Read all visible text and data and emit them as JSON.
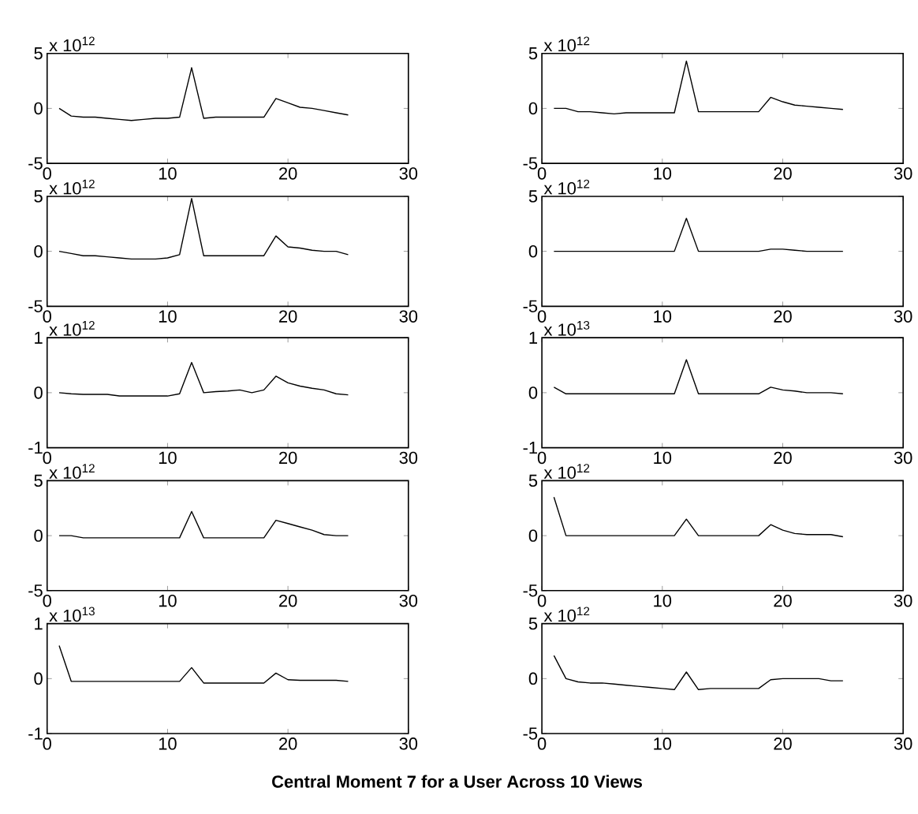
{
  "chart_data": [
    {
      "type": "line",
      "color": "#000000",
      "x": [
        1,
        2,
        3,
        4,
        5,
        6,
        7,
        8,
        9,
        10,
        11,
        12,
        13,
        14,
        15,
        16,
        17,
        18,
        19,
        20,
        21,
        22,
        23,
        24,
        25
      ],
      "values": [
        0,
        -0.7,
        -0.8,
        -0.8,
        -0.9,
        -1.0,
        -1.1,
        -1.0,
        -0.9,
        -0.9,
        -0.8,
        3.7,
        -0.9,
        -0.8,
        -0.8,
        -0.8,
        -0.8,
        -0.8,
        0.9,
        0.5,
        0.1,
        0,
        -0.2,
        -0.4,
        -0.6
      ],
      "xlim": [
        0,
        30
      ],
      "ylim": [
        -5,
        5
      ],
      "xticks": [
        0,
        10,
        20,
        30
      ],
      "yticks": [
        -5,
        0,
        5
      ],
      "annotations": [
        "x 10$^{12}$"
      ]
    },
    {
      "type": "line",
      "color": "#000000",
      "x": [
        1,
        2,
        3,
        4,
        5,
        6,
        7,
        8,
        9,
        10,
        11,
        12,
        13,
        14,
        15,
        16,
        17,
        18,
        19,
        20,
        21,
        22,
        23,
        24,
        25
      ],
      "values": [
        0,
        0,
        -0.3,
        -0.3,
        -0.4,
        -0.5,
        -0.4,
        -0.4,
        -0.4,
        -0.4,
        -0.4,
        4.3,
        -0.3,
        -0.3,
        -0.3,
        -0.3,
        -0.3,
        -0.3,
        1.0,
        0.6,
        0.3,
        0.2,
        0.1,
        0,
        -0.1
      ],
      "xlim": [
        0,
        30
      ],
      "ylim": [
        -5,
        5
      ],
      "xticks": [
        0,
        10,
        20,
        30
      ],
      "yticks": [
        -5,
        0,
        5
      ],
      "annotations": [
        "x 10$^{12}$"
      ]
    },
    {
      "type": "line",
      "color": "#000000",
      "x": [
        1,
        2,
        3,
        4,
        5,
        6,
        7,
        8,
        9,
        10,
        11,
        12,
        13,
        14,
        15,
        16,
        17,
        18,
        19,
        20,
        21,
        22,
        23,
        24,
        25
      ],
      "values": [
        0,
        -0.2,
        -0.4,
        -0.4,
        -0.5,
        -0.6,
        -0.7,
        -0.7,
        -0.7,
        -0.6,
        -0.3,
        4.8,
        -0.4,
        -0.4,
        -0.4,
        -0.4,
        -0.4,
        -0.4,
        1.4,
        0.4,
        0.3,
        0.1,
        0,
        0,
        -0.3
      ],
      "xlim": [
        0,
        30
      ],
      "ylim": [
        -5,
        5
      ],
      "xticks": [
        0,
        10,
        20,
        30
      ],
      "yticks": [
        -5,
        0,
        5
      ],
      "annotations": [
        "x 10$^{12}$"
      ]
    },
    {
      "type": "line",
      "color": "#000000",
      "x": [
        1,
        2,
        3,
        4,
        5,
        6,
        7,
        8,
        9,
        10,
        11,
        12,
        13,
        14,
        15,
        16,
        17,
        18,
        19,
        20,
        21,
        22,
        23,
        24,
        25
      ],
      "values": [
        0,
        0,
        0,
        0,
        0,
        0,
        0,
        0,
        0,
        0,
        0,
        3.0,
        0,
        0,
        0,
        0,
        0,
        0,
        0.2,
        0.2,
        0.1,
        0,
        0,
        0,
        0
      ],
      "xlim": [
        0,
        30
      ],
      "ylim": [
        -5,
        5
      ],
      "xticks": [
        0,
        10,
        20,
        30
      ],
      "yticks": [
        -5,
        0,
        5
      ],
      "annotations": [
        "x 10$^{12}$"
      ]
    },
    {
      "type": "line",
      "color": "#000000",
      "x": [
        1,
        2,
        3,
        4,
        5,
        6,
        7,
        8,
        9,
        10,
        11,
        12,
        13,
        14,
        15,
        16,
        17,
        18,
        19,
        20,
        21,
        22,
        23,
        24,
        25
      ],
      "values": [
        0,
        -0.02,
        -0.03,
        -0.03,
        -0.03,
        -0.06,
        -0.06,
        -0.06,
        -0.06,
        -0.06,
        -0.02,
        0.55,
        0.0,
        0.02,
        0.03,
        0.05,
        0.0,
        0.05,
        0.3,
        0.18,
        0.12,
        0.08,
        0.05,
        -0.02,
        -0.04
      ],
      "xlim": [
        0,
        30
      ],
      "ylim": [
        -1,
        1
      ],
      "xticks": [
        0,
        10,
        20,
        30
      ],
      "yticks": [
        -1,
        0,
        1
      ],
      "annotations": [
        "x 10$^{12}$"
      ]
    },
    {
      "type": "line",
      "color": "#000000",
      "x": [
        1,
        2,
        3,
        4,
        5,
        6,
        7,
        8,
        9,
        10,
        11,
        12,
        13,
        14,
        15,
        16,
        17,
        18,
        19,
        20,
        21,
        22,
        23,
        24,
        25
      ],
      "values": [
        0.1,
        -0.02,
        -0.02,
        -0.02,
        -0.02,
        -0.02,
        -0.02,
        -0.02,
        -0.02,
        -0.02,
        -0.02,
        0.6,
        -0.02,
        -0.02,
        -0.02,
        -0.02,
        -0.02,
        -0.02,
        0.1,
        0.05,
        0.03,
        0,
        0,
        0,
        -0.02
      ],
      "xlim": [
        0,
        30
      ],
      "ylim": [
        -1,
        1
      ],
      "xticks": [
        0,
        10,
        20,
        30
      ],
      "yticks": [
        -1,
        0,
        1
      ],
      "annotations": [
        "x 10$^{13}$"
      ]
    },
    {
      "type": "line",
      "color": "#000000",
      "x": [
        1,
        2,
        3,
        4,
        5,
        6,
        7,
        8,
        9,
        10,
        11,
        12,
        13,
        14,
        15,
        16,
        17,
        18,
        19,
        20,
        21,
        22,
        23,
        24,
        25
      ],
      "values": [
        0,
        0,
        -0.2,
        -0.2,
        -0.2,
        -0.2,
        -0.2,
        -0.2,
        -0.2,
        -0.2,
        -0.2,
        2.2,
        -0.2,
        -0.2,
        -0.2,
        -0.2,
        -0.2,
        -0.2,
        1.4,
        1.1,
        0.8,
        0.5,
        0.1,
        0,
        0
      ],
      "xlim": [
        0,
        30
      ],
      "ylim": [
        -5,
        5
      ],
      "xticks": [
        0,
        10,
        20,
        30
      ],
      "yticks": [
        -5,
        0,
        5
      ],
      "annotations": [
        "x 10$^{12}$"
      ]
    },
    {
      "type": "line",
      "color": "#000000",
      "x": [
        1,
        2,
        3,
        4,
        5,
        6,
        7,
        8,
        9,
        10,
        11,
        12,
        13,
        14,
        15,
        16,
        17,
        18,
        19,
        20,
        21,
        22,
        23,
        24,
        25
      ],
      "values": [
        3.5,
        0,
        0,
        0,
        0,
        0,
        0,
        0,
        0,
        0,
        0,
        1.5,
        0,
        0,
        0,
        0,
        0,
        0,
        1.0,
        0.5,
        0.2,
        0.1,
        0.1,
        0.1,
        -0.1
      ],
      "xlim": [
        0,
        30
      ],
      "ylim": [
        -5,
        5
      ],
      "xticks": [
        0,
        10,
        20,
        30
      ],
      "yticks": [
        -5,
        0,
        5
      ],
      "annotations": [
        "x 10$^{12}$"
      ]
    },
    {
      "type": "line",
      "color": "#000000",
      "x": [
        1,
        2,
        3,
        4,
        5,
        6,
        7,
        8,
        9,
        10,
        11,
        12,
        13,
        14,
        15,
        16,
        17,
        18,
        19,
        20,
        21,
        22,
        23,
        24,
        25
      ],
      "values": [
        0.6,
        -0.05,
        -0.05,
        -0.05,
        -0.05,
        -0.05,
        -0.05,
        -0.05,
        -0.05,
        -0.05,
        -0.05,
        0.2,
        -0.08,
        -0.08,
        -0.08,
        -0.08,
        -0.08,
        -0.08,
        0.1,
        -0.02,
        -0.03,
        -0.03,
        -0.03,
        -0.03,
        -0.05
      ],
      "xlim": [
        0,
        30
      ],
      "ylim": [
        -1,
        1
      ],
      "xticks": [
        0,
        10,
        20,
        30
      ],
      "yticks": [
        -1,
        0,
        1
      ],
      "annotations": [
        "x 10$^{13}$"
      ]
    },
    {
      "type": "line",
      "color": "#000000",
      "x": [
        1,
        2,
        3,
        4,
        5,
        6,
        7,
        8,
        9,
        10,
        11,
        12,
        13,
        14,
        15,
        16,
        17,
        18,
        19,
        20,
        21,
        22,
        23,
        24,
        25
      ],
      "values": [
        2.1,
        0,
        -0.3,
        -0.4,
        -0.4,
        -0.5,
        -0.6,
        -0.7,
        -0.8,
        -0.9,
        -1.0,
        0.6,
        -1.0,
        -0.9,
        -0.9,
        -0.9,
        -0.9,
        -0.9,
        -0.1,
        0,
        0,
        0,
        0,
        -0.2,
        -0.2
      ],
      "xlim": [
        0,
        30
      ],
      "ylim": [
        -5,
        5
      ],
      "xticks": [
        0,
        10,
        20,
        30
      ],
      "yticks": [
        -5,
        0,
        5
      ],
      "annotations": [
        "x 10$^{12}$"
      ],
      "title": "Central Moment 7 for a User Across 10 Views"
    }
  ]
}
